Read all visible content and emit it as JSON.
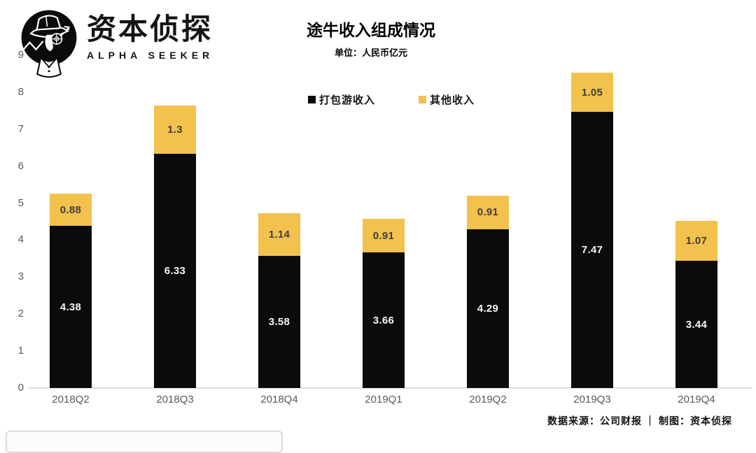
{
  "header": {
    "logo": {
      "brand": "资本侦探",
      "subbrand": "ALPHA SEEKER",
      "icon": "detective-logo-icon"
    }
  },
  "chart_data": {
    "type": "bar",
    "stacked": true,
    "title": "途牛收入组成情况",
    "subtitle": "单位：人民币亿元",
    "categories": [
      "2018Q2",
      "2018Q3",
      "2018Q4",
      "2019Q1",
      "2019Q2",
      "2019Q3",
      "2019Q4"
    ],
    "series": [
      {
        "name": "打包游收入",
        "color": "#0b0b0b",
        "label_color": "#f5f5f5",
        "values": [
          4.38,
          6.33,
          3.58,
          3.66,
          4.29,
          7.47,
          3.44
        ],
        "labels": [
          "4.38",
          "6.33",
          "3.58",
          "3.66",
          "4.29",
          "7.47",
          "3.44"
        ]
      },
      {
        "name": "其他收入",
        "color": "#F2C24D",
        "label_color": "#3f3f3f",
        "values": [
          0.88,
          1.3,
          1.14,
          0.91,
          0.91,
          1.05,
          1.07
        ],
        "labels": [
          "0.88",
          "1.3",
          "1.14",
          "0.91",
          "0.91",
          "1.05",
          "1.07"
        ]
      }
    ],
    "ylim": [
      0,
      9
    ],
    "yticks": [
      0,
      1,
      2,
      3,
      4,
      5,
      6,
      7,
      8,
      9
    ],
    "grid": false,
    "legend_position": "top-center",
    "colors": {
      "axis_line": "#dcdcdc",
      "tick_text": "#595959"
    }
  },
  "footer": {
    "source": "数据来源：公司财报 ｜ 制图：资本侦探"
  }
}
